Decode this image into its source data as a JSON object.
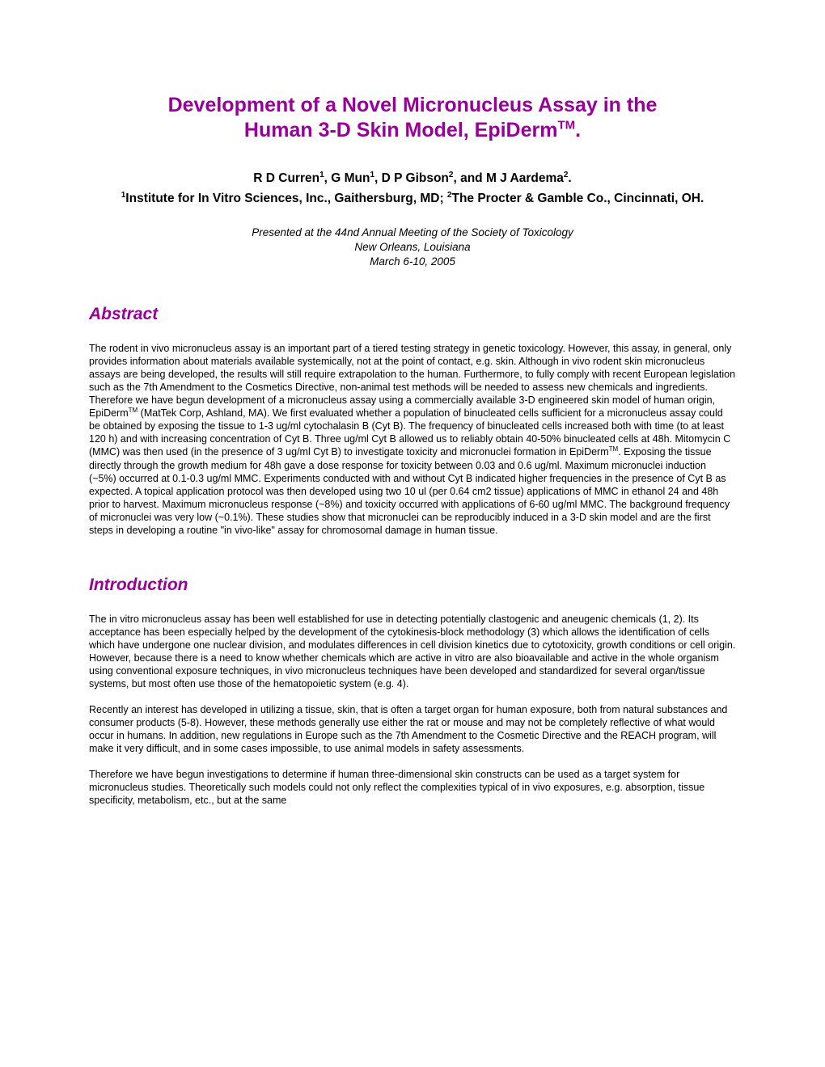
{
  "colors": {
    "accent": "#990099",
    "text": "#000000",
    "background": "#ffffff"
  },
  "typography": {
    "title_fontsize": 25,
    "authors_fontsize": 15.5,
    "conference_fontsize": 13.5,
    "heading_fontsize": 21,
    "body_fontsize": 12.5,
    "font_family": "Arial"
  },
  "title": {
    "line1": "Development of a Novel Micronucleus Assay in the",
    "line2_pre": "Human 3-D Skin Model, EpiDerm",
    "line2_sup": "TM",
    "line2_post": "."
  },
  "authors": {
    "a1": "R D Curren",
    "a1_sup": "1",
    "sep1": ", G Mun",
    "a2_sup": "1",
    "sep2": ", D P Gibson",
    "a3_sup": "2",
    "sep3": ", and M J Aardema",
    "a4_sup": "2",
    "end": "."
  },
  "affil": {
    "s1": "1",
    "t1": "Institute for In Vitro Sciences, Inc., Gaithersburg, MD; ",
    "s2": "2",
    "t2": "The Procter & Gamble Co., Cincinnati, OH."
  },
  "conference": {
    "line1": "Presented at the 44nd Annual Meeting of the Society of Toxicology",
    "line2": "New Orleans, Louisiana",
    "line3": "March 6-10, 2005"
  },
  "sections": {
    "abstract_heading": "Abstract",
    "abstract_p1a": "The rodent in vivo micronucleus assay is an important part of a tiered testing strategy in genetic toxicology. However, this assay, in general, only provides information about materials available systemically, not at the point of contact, e.g. skin. Although in vivo rodent skin micronucleus assays are being developed, the results will still require extrapolation to the human. Furthermore, to fully comply with recent European legislation such as the 7th Amendment to the Cosmetics Directive, non-animal test methods will be needed to assess new chemicals and ingredients. Therefore we have begun development of a micronucleus assay using a commercially available 3-D engineered skin model of human origin, EpiDerm",
    "abstract_sup1": "TM",
    "abstract_p1b": " (MatTek Corp, Ashland, MA). We first evaluated whether a population of binucleated cells sufficient for a micronucleus assay could be obtained by exposing the tissue to 1-3 ug/ml cytochalasin B (Cyt B). The frequency of binucleated cells increased both with time (to at least 120 h) and with increasing concentration of Cyt B. Three ug/ml Cyt B allowed us to reliably obtain 40-50% binucleated cells at 48h. Mitomycin C (MMC) was then used (in the presence of 3 ug/ml Cyt B) to investigate toxicity and micronuclei formation in EpiDerm",
    "abstract_sup2": "TM",
    "abstract_p1c": ". Exposing the tissue directly through the growth medium for 48h gave a dose response for toxicity between 0.03 and 0.6 ug/ml. Maximum micronuclei induction (~5%) occurred at 0.1-0.3 ug/ml MMC. Experiments conducted with and without Cyt B indicated higher frequencies in the presence of Cyt B as expected. A topical application protocol was then developed using two 10 ul (per 0.64 cm2 tissue) applications of MMC in ethanol 24 and 48h prior to harvest. Maximum micronucleus response (~8%) and toxicity occurred with applications of 6-60 ug/ml MMC. The background frequency of micronuclei was very low (~0.1%). These studies show that micronuclei can be reproducibly induced in a 3-D skin model and are the first steps in developing a routine \"in vivo-like\" assay for chromosomal damage in human tissue.",
    "intro_heading": "Introduction",
    "intro_p1": "The in vitro micronucleus assay has been well established for use in detecting potentially clastogenic and aneugenic chemicals (1, 2). Its acceptance has been especially helped by the development of the cytokinesis-block methodology (3) which allows the identification of cells which have undergone one nuclear division, and modulates differences in cell division kinetics due to cytotoxicity, growth conditions or cell origin. However,  because there is a need to know whether chemicals which are active in vitro are also bioavailable and active in the whole organism using conventional exposure techniques, in vivo micronucleus techniques have been developed and standardized for several organ/tissue systems, but most often use those of the hematopoietic system (e.g. 4).",
    "intro_p2": "Recently an interest has developed in utilizing a tissue, skin,  that is often a target organ for human exposure, both from natural substances and consumer products (5-8). However, these methods generally use either the rat or mouse and may not be completely reflective of what would occur in humans. In addition, new regulations in Europe such as the 7th Amendment to the Cosmetic Directive and the REACH program, will make it very difficult, and in some cases impossible, to use animal models in safety assessments.",
    "intro_p3": "Therefore we have begun investigations to determine if human three-dimensional skin constructs can be used as a target system for micronucleus studies. Theoretically such models could not only reflect the complexities typical of in vivo exposures, e.g. absorption, tissue specificity, metabolism, etc., but at the same"
  }
}
